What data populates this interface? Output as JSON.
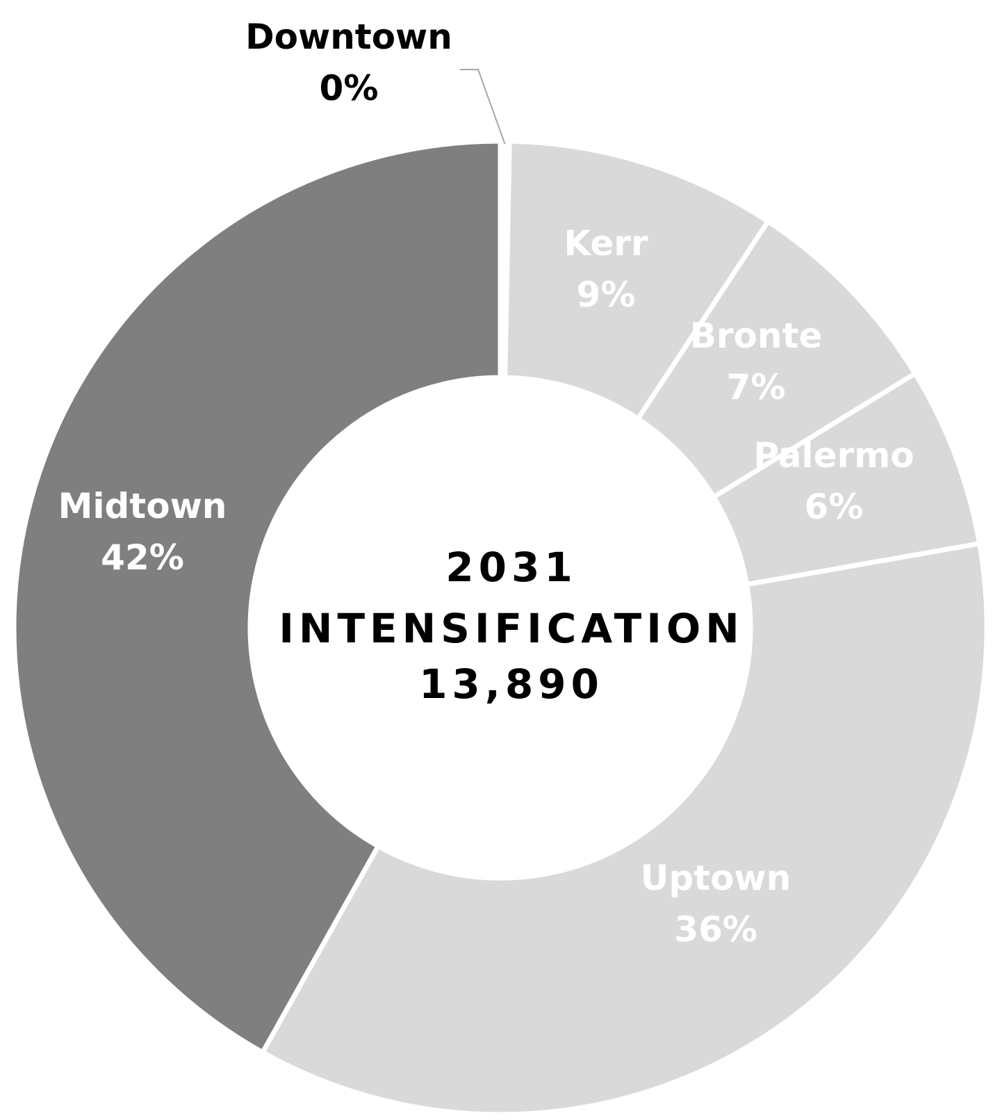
{
  "chart_data": {
    "type": "pie",
    "style": "donut",
    "center_label": {
      "lines": [
        "2031",
        "INTENSIFICATION",
        "13,890"
      ]
    },
    "slices": [
      {
        "name": "Downtown",
        "value_label": "0%",
        "value": 0.3,
        "color": "#ffffff",
        "label_color": "#000000",
        "label_outside": true
      },
      {
        "name": "Kerr",
        "value_label": "9%",
        "value": 9,
        "color": "#d9d9d9",
        "label_color": "#ffffff"
      },
      {
        "name": "Bronte",
        "value_label": "7%",
        "value": 7,
        "color": "#d9d9d9",
        "label_color": "#ffffff"
      },
      {
        "name": "Palermo",
        "value_label": "6%",
        "value": 6,
        "color": "#d9d9d9",
        "label_color": "#ffffff"
      },
      {
        "name": "Uptown",
        "value_label": "36%",
        "value": 36,
        "color": "#d9d9d9",
        "label_color": "#ffffff"
      },
      {
        "name": "Midtown",
        "value_label": "42%",
        "value": 42,
        "color": "#7f7f7f",
        "label_color": "#ffffff"
      }
    ],
    "separator_color": "#ffffff",
    "legend": "none"
  }
}
